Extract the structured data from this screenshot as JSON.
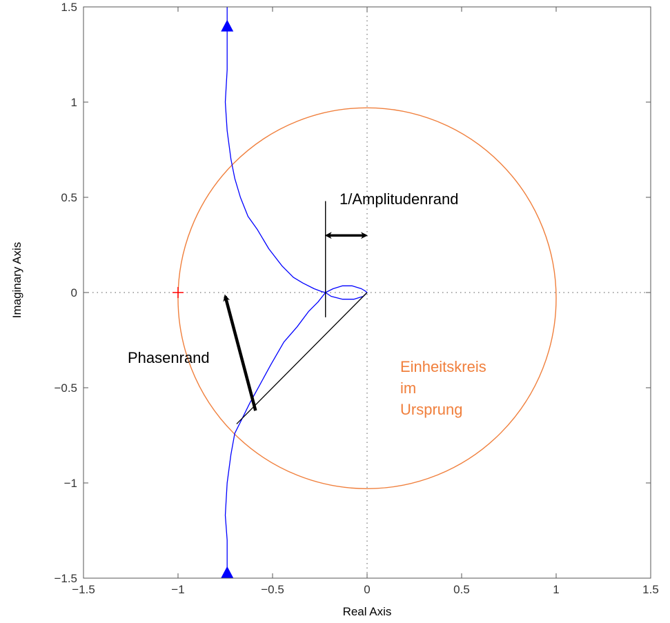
{
  "chart_data": {
    "type": "line",
    "xlabel": "Real Axis",
    "ylabel": "Imaginary Axis",
    "xlim": [
      -1.5,
      1.5
    ],
    "ylim": [
      -1.5,
      1.5
    ],
    "xticks": [
      -1.5,
      -1,
      -0.5,
      0,
      0.5,
      1,
      1.5
    ],
    "yticks": [
      -1.5,
      -1,
      -0.5,
      0,
      0.5,
      1,
      1.5
    ],
    "xtick_labels": [
      "−1.5",
      "−1",
      "−0.5",
      "0",
      "0.5",
      "1",
      "1.5"
    ],
    "ytick_labels": [
      "−1.5",
      "−1",
      "−0.5",
      "0",
      "0.5",
      "1",
      "1.5"
    ],
    "grid": "origin lines only (dotted)",
    "colors": {
      "nyquist": "#0000ff",
      "circle": "#f07f3c",
      "critical_point": "#ff0000",
      "annotation": "#000000",
      "frame": "#555555"
    },
    "series": [
      {
        "type": "line",
        "x": [
          -0.74,
          -0.74,
          -0.74,
          -0.74,
          -0.75,
          -0.74,
          -0.72,
          -0.7,
          -0.67,
          -0.63,
          -0.58,
          -0.52,
          -0.45,
          -0.39,
          -0.34,
          -0.28,
          -0.24,
          -0.22,
          -0.18,
          -0.13,
          -0.08,
          -0.03,
          -0.01,
          0.0,
          -0.02,
          -0.07,
          -0.13,
          -0.19,
          -0.22,
          -0.26,
          -0.31,
          -0.37,
          -0.44,
          -0.51,
          -0.57,
          -0.62,
          -0.66,
          -0.7,
          -0.72,
          -0.74,
          -0.75,
          -0.74,
          -0.74,
          -0.74
        ],
        "y": [
          1.5,
          1.4,
          1.3,
          1.17,
          1.0,
          0.85,
          0.7,
          0.6,
          0.5,
          0.4,
          0.33,
          0.23,
          0.14,
          0.08,
          0.05,
          0.02,
          0.005,
          0.0,
          0.02,
          0.035,
          0.035,
          0.02,
          0.008,
          0.0,
          -0.02,
          -0.035,
          -0.035,
          -0.02,
          0.0,
          -0.05,
          -0.1,
          -0.18,
          -0.26,
          -0.38,
          -0.49,
          -0.58,
          -0.66,
          -0.74,
          -0.85,
          -1.0,
          -1.17,
          -1.3,
          -1.4,
          -1.5
        ]
      },
      {
        "type": "circle",
        "center": [
          0,
          -0.03
        ],
        "radius": 1.0
      }
    ],
    "markers": {
      "critical_point": [
        -1,
        0
      ],
      "direction_arrows": [
        [
          -0.74,
          1.4
        ],
        [
          -0.74,
          -1.47
        ]
      ]
    },
    "annotations": {
      "gain_margin": {
        "label": "1/Amplitudenrand",
        "line_x": -0.22,
        "line_y": [
          -0.13,
          0.48
        ],
        "arrow_from": -0.22,
        "arrow_to": 0.0,
        "arrow_y": 0.3
      },
      "phase_margin": {
        "label": "Phasenrand",
        "arrow_from": [
          -0.59,
          -0.62
        ],
        "arrow_to": [
          -0.75,
          -0.02
        ],
        "radius_line_from": [
          0,
          0
        ],
        "radius_line_to": [
          -0.69,
          -0.69
        ]
      },
      "circle_label": [
        "Einheitskreis",
        "im",
        "Ursprung"
      ]
    }
  }
}
